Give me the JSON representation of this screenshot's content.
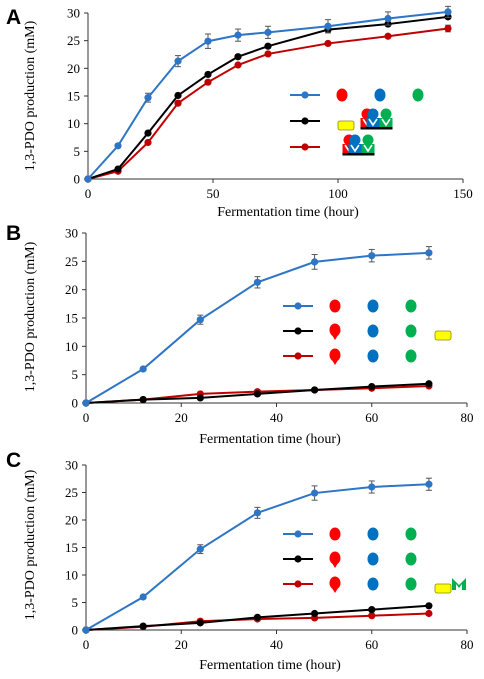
{
  "chart_data": [
    {
      "panel": "A",
      "type": "line",
      "xlabel": "Fermentation time (hour)",
      "ylabel": "1,3-PDO production (mM)",
      "xlim": [
        0,
        150
      ],
      "ylim": [
        0,
        30
      ],
      "xticks": [
        0,
        50,
        100,
        150
      ],
      "yticks": [
        0,
        5,
        10,
        15,
        20,
        25,
        30
      ],
      "x": [
        0,
        12,
        24,
        36,
        48,
        60,
        72,
        96,
        120,
        144
      ],
      "series": [
        {
          "color": "#2e75c6",
          "values": [
            0,
            6.0,
            14.7,
            21.3,
            24.9,
            26.0,
            26.5,
            27.6,
            29.0,
            30.2
          ],
          "errors": [
            0,
            0.3,
            0.8,
            1.0,
            1.3,
            1.1,
            1.1,
            1.2,
            1.2,
            1.0
          ]
        },
        {
          "color": "#000000",
          "values": [
            0,
            1.8,
            8.3,
            15.1,
            18.9,
            22.1,
            24.0,
            27.0,
            28.0,
            29.3
          ],
          "errors": [
            0,
            0,
            0,
            0,
            0,
            0,
            0,
            0,
            0,
            0
          ]
        },
        {
          "color": "#c00000",
          "values": [
            0,
            1.4,
            6.6,
            13.7,
            17.5,
            20.6,
            22.6,
            24.5,
            25.8,
            27.2
          ],
          "errors": [
            0,
            0,
            0,
            0,
            0,
            0,
            0,
            0,
            0,
            0.6
          ]
        }
      ],
      "legend": "inside-right",
      "grid": false
    },
    {
      "panel": "B",
      "type": "line",
      "xlabel": "Fermentation time (hour)",
      "ylabel": "1,3-PDO production (mM)",
      "xlim": [
        0,
        80
      ],
      "ylim": [
        0,
        30
      ],
      "xticks": [
        0,
        20,
        40,
        60,
        80
      ],
      "yticks": [
        0,
        5,
        10,
        15,
        20,
        25,
        30
      ],
      "x": [
        0,
        12,
        24,
        36,
        48,
        60,
        72
      ],
      "series": [
        {
          "color": "#2e75c6",
          "values": [
            0,
            6.0,
            14.7,
            21.3,
            24.9,
            26.0,
            26.5
          ],
          "errors": [
            0,
            0.3,
            0.8,
            1.0,
            1.3,
            1.1,
            1.1
          ]
        },
        {
          "color": "#000000",
          "values": [
            0,
            0.6,
            0.9,
            1.6,
            2.3,
            2.9,
            3.4
          ],
          "errors": [
            0,
            0,
            0,
            0,
            0,
            0,
            0
          ]
        },
        {
          "color": "#c00000",
          "values": [
            0,
            0.6,
            1.6,
            2.0,
            2.3,
            2.6,
            3.0
          ],
          "errors": [
            0,
            0,
            0,
            0,
            0,
            0,
            0
          ]
        }
      ],
      "legend": "inside-right",
      "grid": false
    },
    {
      "panel": "C",
      "type": "line",
      "xlabel": "Fermentation time (hour)",
      "ylabel": "1,3-PDO production (mM)",
      "xlim": [
        0,
        80
      ],
      "ylim": [
        0,
        30
      ],
      "xticks": [
        0,
        20,
        40,
        60,
        80
      ],
      "yticks": [
        0,
        5,
        10,
        15,
        20,
        25,
        30
      ],
      "x": [
        0,
        12,
        24,
        36,
        48,
        60,
        72
      ],
      "series": [
        {
          "color": "#2e75c6",
          "values": [
            0,
            6.0,
            14.7,
            21.3,
            24.9,
            26.0,
            26.5
          ],
          "errors": [
            0,
            0.3,
            0.8,
            1.0,
            1.3,
            1.1,
            1.1
          ]
        },
        {
          "color": "#000000",
          "values": [
            0,
            0.7,
            1.3,
            2.3,
            3.0,
            3.7,
            4.4
          ],
          "errors": [
            0,
            0,
            0,
            0,
            0,
            0,
            0
          ]
        },
        {
          "color": "#c00000",
          "values": [
            0,
            0.6,
            1.6,
            2.0,
            2.2,
            2.6,
            3.0
          ],
          "errors": [
            0,
            0,
            0,
            0,
            0,
            0,
            0
          ]
        }
      ],
      "legend": "inside-right",
      "grid": false
    }
  ],
  "legend_glyphs": {
    "colors": {
      "red": "#ff0000",
      "blue": "#0070c0",
      "green": "#00b050",
      "yellow": "#ffff00"
    },
    "A": [
      {
        "series": 0,
        "glyphs": [
          "circle-red",
          "circle-blue",
          "circle-green"
        ]
      },
      {
        "series": 1,
        "glyphs": [
          "yellow-tag",
          "linked-red-mutant",
          "linked-blue-mutant",
          "linked-green-mutant"
        ]
      },
      {
        "series": 2,
        "glyphs": [
          "linked-red-mutant",
          "linked-blue-mutant",
          "linked-green-mutant"
        ]
      }
    ],
    "B": [
      {
        "series": 0,
        "glyphs": [
          "circle-red",
          "circle-blue",
          "circle-green"
        ]
      },
      {
        "series": 1,
        "glyphs": [
          "circle-red-notched",
          "circle-blue",
          "circle-green",
          "yellow-tag"
        ]
      },
      {
        "series": 2,
        "glyphs": [
          "circle-red-notched",
          "circle-blue",
          "circle-green"
        ]
      }
    ],
    "C": [
      {
        "series": 0,
        "glyphs": [
          "circle-red",
          "circle-blue",
          "circle-green"
        ]
      },
      {
        "series": 1,
        "glyphs": [
          "circle-red-notched",
          "circle-blue",
          "circle-green"
        ]
      },
      {
        "series": 2,
        "glyphs": [
          "circle-red-notched",
          "circle-blue",
          "circle-green",
          "yellow-tag",
          "green-anchor"
        ]
      }
    ]
  }
}
